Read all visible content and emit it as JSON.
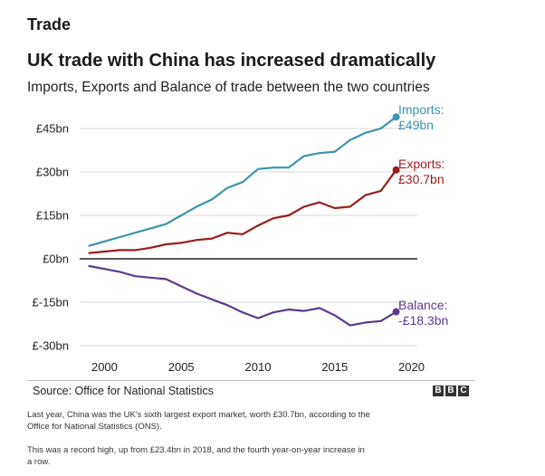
{
  "section_title": "Trade",
  "source": "Source: Office for National Statistics",
  "logo": {
    "letters": [
      "B",
      "B",
      "C"
    ]
  },
  "captions": [
    "Last year, China was the UK's sixth largest export market, worth £30.7bn, according to the Office for National Statistics (ONS).",
    "This was a record high, up from £23.4bn in 2018, and the fourth year-on-year increase in a row."
  ],
  "chart_data": {
    "type": "line",
    "title": "UK trade with China has increased dramatically",
    "subtitle": "Imports, Exports and Balance of trade between the two countries",
    "xlabel": "",
    "ylabel": "",
    "x": [
      1999,
      2000,
      2001,
      2002,
      2003,
      2004,
      2005,
      2006,
      2007,
      2008,
      2009,
      2010,
      2011,
      2012,
      2013,
      2014,
      2015,
      2016,
      2017,
      2018,
      2019
    ],
    "xlim": [
      1998.5,
      2020.5
    ],
    "ylim": [
      -30,
      50
    ],
    "x_ticks": [
      {
        "value": 2000,
        "label": "2000"
      },
      {
        "value": 2005,
        "label": "2005"
      },
      {
        "value": 2010,
        "label": "2010"
      },
      {
        "value": 2015,
        "label": "2015"
      },
      {
        "value": 2020,
        "label": "2020"
      }
    ],
    "y_ticks": [
      {
        "value": 45,
        "label": "£45bn"
      },
      {
        "value": 30,
        "label": "£30bn"
      },
      {
        "value": 15,
        "label": "£15bn"
      },
      {
        "value": 0,
        "label": "£0bn"
      },
      {
        "value": -15,
        "label": "£-15bn"
      },
      {
        "value": -30,
        "label": "£-30bn"
      }
    ],
    "grid": true,
    "series": [
      {
        "name": "Imports",
        "label_lines": [
          "Imports:",
          "£49bn"
        ],
        "color": "#3a93b0",
        "values": [
          4.5,
          6,
          7.5,
          9,
          10.5,
          12,
          15,
          18,
          20.5,
          24.5,
          26.5,
          31,
          31.5,
          31.5,
          35.5,
          36.5,
          37,
          41,
          43.5,
          45,
          49
        ]
      },
      {
        "name": "Exports",
        "label_lines": [
          "Exports:",
          "£30.7bn"
        ],
        "color": "#9b1c1c",
        "values": [
          2,
          2.5,
          3,
          3,
          3.8,
          5,
          5.5,
          6.5,
          7,
          9,
          8.5,
          11.5,
          14,
          15,
          18,
          19.5,
          17.5,
          18,
          22,
          23.4,
          30.7
        ]
      },
      {
        "name": "Balance",
        "label_lines": [
          "Balance:",
          "-£18.3bn"
        ],
        "color": "#5b3b8c",
        "values": [
          -2.5,
          -3.5,
          -4.5,
          -6,
          -6.5,
          -7,
          -9.5,
          -12,
          -14,
          -16,
          -18.5,
          -20.5,
          -18.5,
          -17.5,
          -18,
          -17,
          -19.5,
          -23,
          -22,
          -21.5,
          -18.3
        ]
      }
    ]
  }
}
